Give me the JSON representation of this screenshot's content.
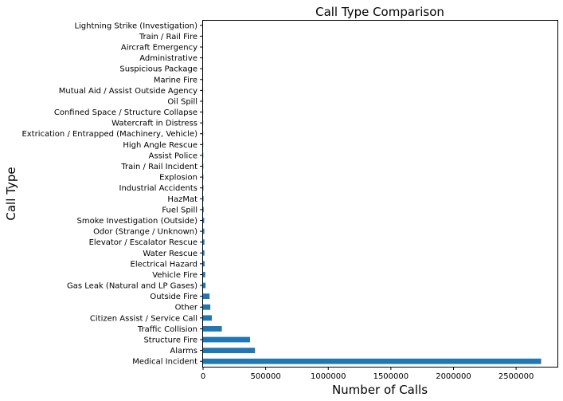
{
  "chart_data": {
    "type": "bar",
    "orientation": "horizontal",
    "title": "Call Type Comparison",
    "xlabel": "Number of Calls",
    "ylabel": "Call Type",
    "xlim": [
      0,
      2830000
    ],
    "xticks": [
      0,
      500000,
      1000000,
      1500000,
      2000000,
      2500000
    ],
    "grid": false,
    "color": "#1f77b4",
    "categories": [
      "Medical Incident",
      "Alarms",
      "Structure Fire",
      "Traffic Collision",
      "Citizen Assist / Service Call",
      "Other",
      "Outside Fire",
      "Gas Leak (Natural and LP Gases)",
      "Vehicle Fire",
      "Electrical Hazard",
      "Water Rescue",
      "Elevator / Escalator Rescue",
      "Odor (Strange / Unknown)",
      "Smoke Investigation (Outside)",
      "Fuel Spill",
      "HazMat",
      "Industrial Accidents",
      "Explosion",
      "Train / Rail Incident",
      "Assist Police",
      "High Angle Rescue",
      "Extrication / Entrapped (Machinery, Vehicle)",
      "Watercraft in Distress",
      "Confined Space / Structure Collapse",
      "Oil Spill",
      "Mutual Aid / Assist Outside Agency",
      "Marine Fire",
      "Suspicious Package",
      "Administrative",
      "Aircraft Emergency",
      "Train / Rail Fire",
      "Lightning Strike (Investigation)"
    ],
    "values": [
      2700000,
      415000,
      375000,
      150000,
      70000,
      58000,
      52000,
      20000,
      17000,
      12000,
      11000,
      11000,
      10000,
      9000,
      5000,
      4000,
      3000,
      2500,
      2000,
      1500,
      1200,
      1000,
      900,
      800,
      600,
      500,
      400,
      300,
      200,
      100,
      50,
      20
    ]
  }
}
